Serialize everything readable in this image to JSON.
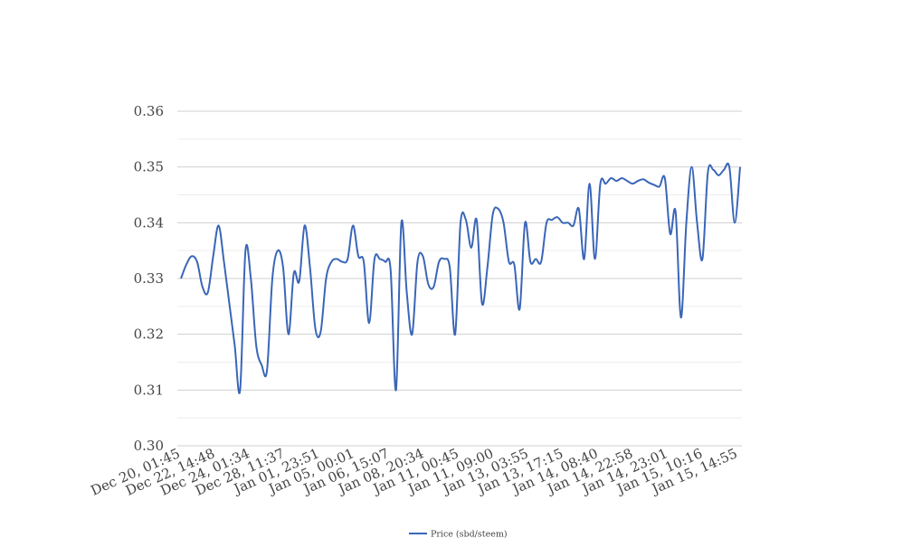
{
  "chart_data": {
    "type": "line",
    "title": "",
    "xlabel": "",
    "ylabel": "",
    "ylim": [
      0.3,
      0.36
    ],
    "yticks": [
      "0.30",
      "0.31",
      "0.32",
      "0.33",
      "0.34",
      "0.35",
      "0.36"
    ],
    "grid": true,
    "legend_position": "bottom-center",
    "line_color": "#3a66b8",
    "x_tick_labels": [
      "Dec 20, 01:45",
      "Dec 22, 14:48",
      "Dec 24, 01:34",
      "Dec 28, 11:37",
      "Jan 01, 23:51",
      "Jan 05, 00:01",
      "Jan 06, 15:07",
      "Jan 08, 20:34",
      "Jan 11, 00:45",
      "Jan 11, 09:00",
      "Jan 13, 03:55",
      "Jan 13, 17:15",
      "Jan 14, 08:40",
      "Jan 14, 22:58",
      "Jan 14, 23:01",
      "Jan 15, 10:16",
      "Jan 15, 14:55"
    ],
    "series": [
      {
        "name": "Price (sbd/steem)",
        "values": [
          0.33,
          0.3325,
          0.334,
          0.333,
          0.3285,
          0.3275,
          0.334,
          0.3395,
          0.333,
          0.3255,
          0.318,
          0.31,
          0.335,
          0.33,
          0.318,
          0.3145,
          0.3135,
          0.33,
          0.335,
          0.332,
          0.32,
          0.331,
          0.3295,
          0.3395,
          0.332,
          0.321,
          0.3205,
          0.33,
          0.333,
          0.3335,
          0.333,
          0.3335,
          0.3395,
          0.334,
          0.333,
          0.322,
          0.3335,
          0.3335,
          0.333,
          0.3315,
          0.31,
          0.34,
          0.3275,
          0.32,
          0.333,
          0.334,
          0.329,
          0.3285,
          0.333,
          0.3335,
          0.332,
          0.32,
          0.34,
          0.3405,
          0.3355,
          0.3405,
          0.3255,
          0.332,
          0.3415,
          0.3425,
          0.34,
          0.333,
          0.3325,
          0.3245,
          0.34,
          0.333,
          0.3335,
          0.333,
          0.34,
          0.3405,
          0.341,
          0.34,
          0.34,
          0.3395,
          0.3425,
          0.3335,
          0.347,
          0.3335,
          0.347,
          0.347,
          0.348,
          0.3475,
          0.348,
          0.3475,
          0.347,
          0.3475,
          0.3478,
          0.3472,
          0.3468,
          0.3465,
          0.348,
          0.338,
          0.342,
          0.323,
          0.34,
          0.35,
          0.34,
          0.3335,
          0.349,
          0.3495,
          0.3485,
          0.3495,
          0.35,
          0.34,
          0.35
        ]
      }
    ]
  }
}
